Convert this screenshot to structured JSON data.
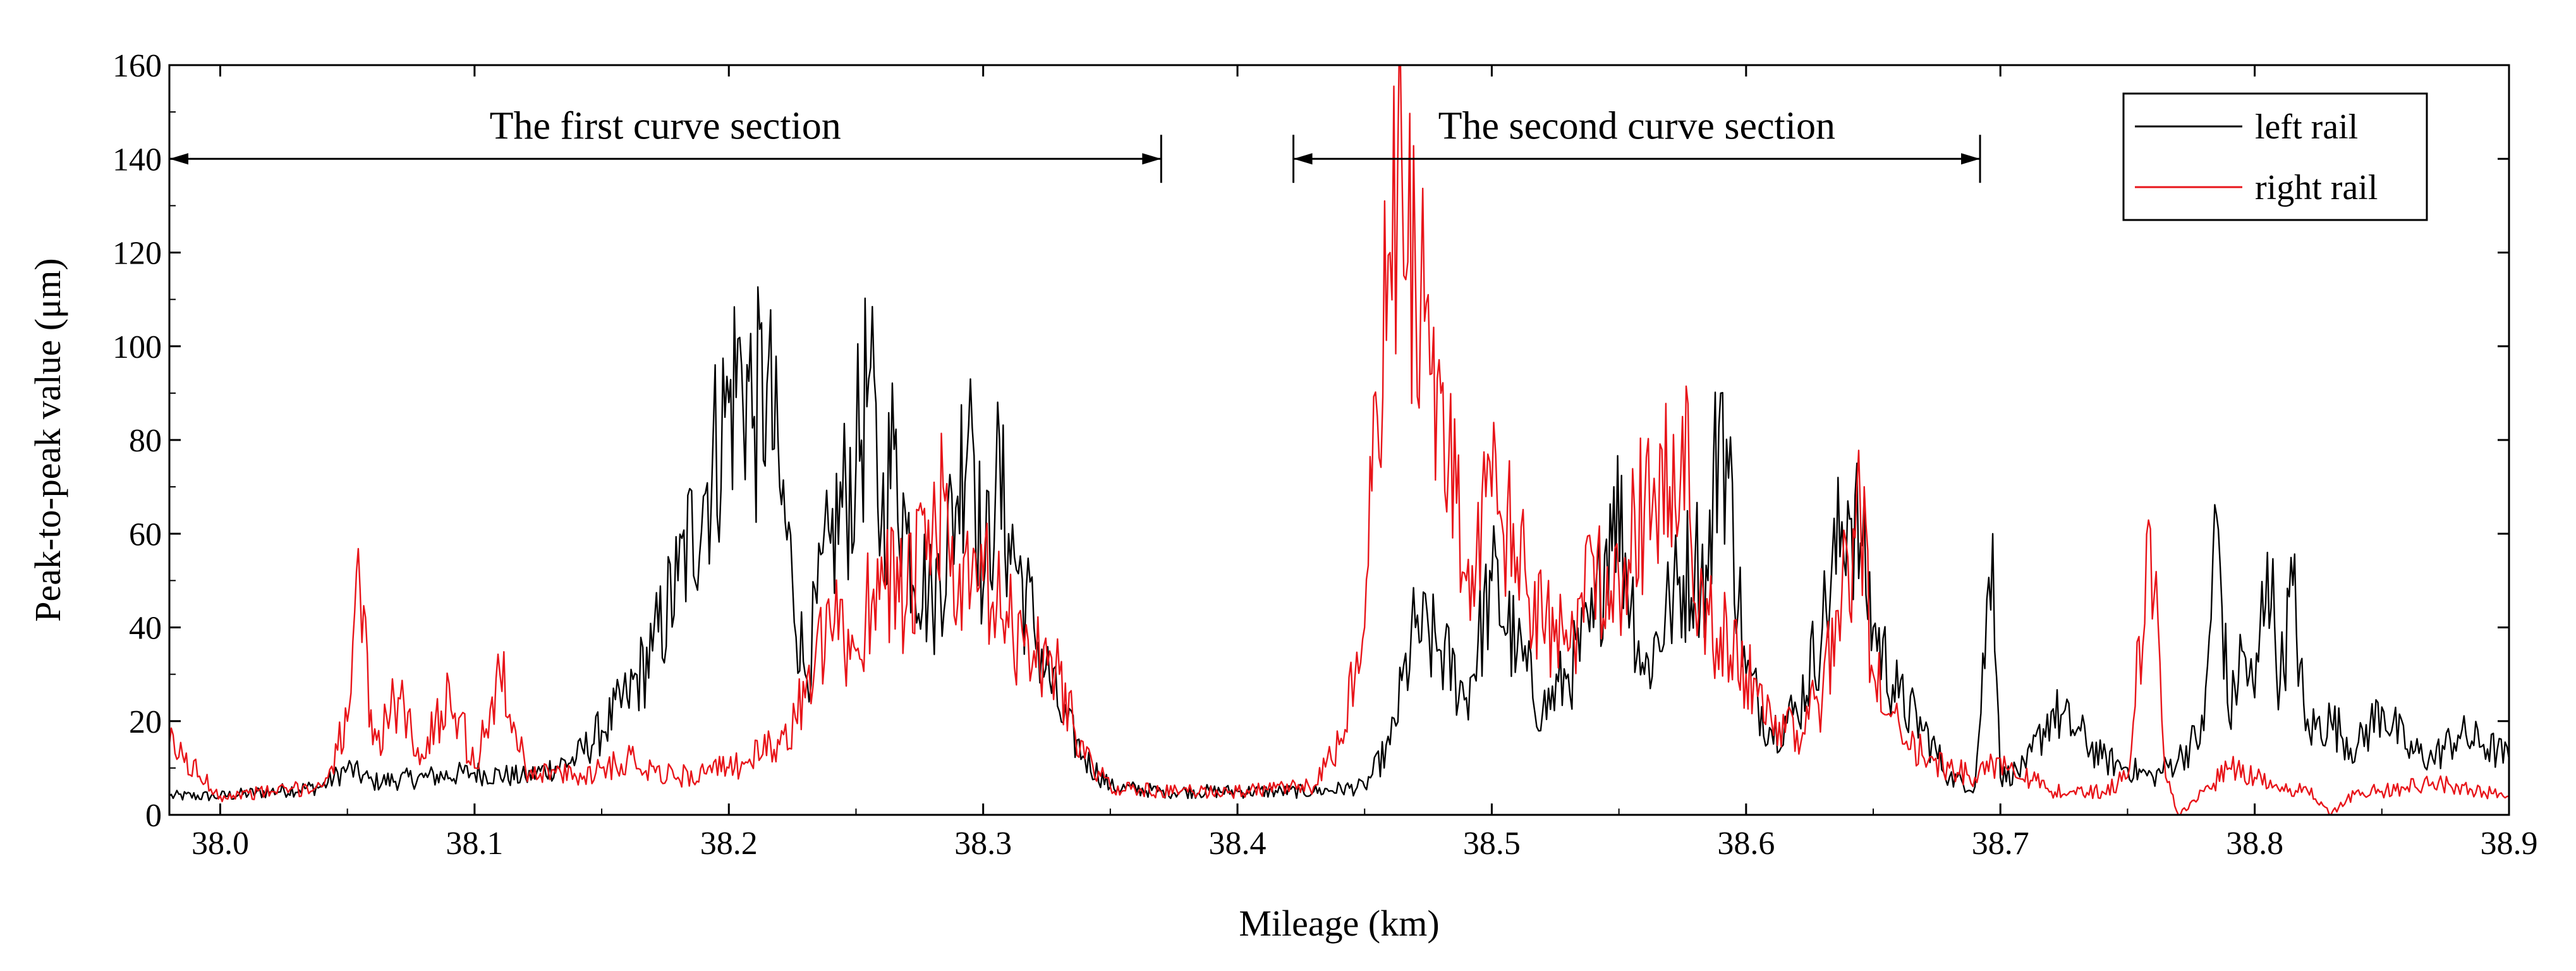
{
  "chart_data": {
    "type": "line",
    "title": "",
    "xlabel": "Mileage (km)",
    "ylabel": "Peak-to-peak value (μm)",
    "xlim": [
      37.98,
      38.9
    ],
    "ylim": [
      0,
      160
    ],
    "xticks": [
      38.0,
      38.1,
      38.2,
      38.3,
      38.4,
      38.5,
      38.6,
      38.7,
      38.8,
      38.9
    ],
    "xtick_labels": [
      "38.0",
      "38.1",
      "38.2",
      "38.3",
      "38.4",
      "38.5",
      "38.6",
      "38.7",
      "38.8",
      "38.9"
    ],
    "yticks": [
      0,
      20,
      40,
      60,
      80,
      100,
      120,
      140,
      160
    ],
    "ytick_labels": [
      "0",
      "20",
      "40",
      "60",
      "80",
      "100",
      "120",
      "140",
      "160"
    ],
    "grid": false,
    "legend_position": "top-right",
    "annotations": [
      {
        "text": "The first curve section",
        "x_start": 37.98,
        "x_end": 38.37,
        "y": 140
      },
      {
        "text": "The second curve section",
        "x_start": 38.422,
        "x_end": 38.692,
        "y": 140
      }
    ],
    "series": [
      {
        "name": "left rail",
        "color": "#000000",
        "x": [
          37.98,
          38.0,
          38.02,
          38.04,
          38.05,
          38.06,
          38.08,
          38.1,
          38.12,
          38.14,
          38.15,
          38.16,
          38.17,
          38.18,
          38.19,
          38.2,
          38.205,
          38.21,
          38.215,
          38.22,
          38.225,
          38.23,
          38.24,
          38.25,
          38.255,
          38.26,
          38.265,
          38.27,
          38.28,
          38.29,
          38.295,
          38.3,
          38.305,
          38.31,
          38.32,
          38.33,
          38.34,
          38.35,
          38.37,
          38.4,
          38.43,
          38.45,
          38.46,
          38.47,
          38.48,
          38.49,
          38.5,
          38.51,
          38.52,
          38.53,
          38.54,
          38.548,
          38.56,
          38.57,
          38.58,
          38.585,
          38.59,
          38.6,
          38.61,
          38.62,
          38.63,
          38.64,
          38.645,
          38.65,
          38.66,
          38.67,
          38.68,
          38.69,
          38.697,
          38.7,
          38.71,
          38.72,
          38.73,
          38.74,
          38.75,
          38.76,
          38.77,
          38.78,
          38.785,
          38.79,
          38.795,
          38.8,
          38.805,
          38.81,
          38.815,
          38.82,
          38.83,
          38.84,
          38.85,
          38.86,
          38.87,
          38.88,
          38.89,
          38.9
        ],
        "values": [
          4,
          4,
          5,
          6,
          10,
          7,
          8,
          9,
          8,
          12,
          18,
          25,
          35,
          50,
          68,
          88,
          96,
          85,
          92,
          70,
          50,
          30,
          58,
          75,
          93,
          62,
          78,
          60,
          45,
          68,
          93,
          48,
          72,
          60,
          40,
          22,
          12,
          6,
          5,
          5,
          5,
          6,
          15,
          40,
          35,
          25,
          50,
          35,
          22,
          30,
          40,
          70,
          30,
          45,
          55,
          50,
          90,
          30,
          18,
          22,
          40,
          67,
          58,
          40,
          25,
          18,
          8,
          6,
          60,
          8,
          10,
          22,
          18,
          12,
          10,
          8,
          12,
          18,
          64,
          20,
          35,
          25,
          56,
          28,
          49,
          18,
          20,
          14,
          23,
          14,
          12,
          17,
          15,
          12
        ]
      },
      {
        "name": "right rail",
        "color": "#e8151a",
        "x": [
          37.98,
          38.0,
          38.02,
          38.04,
          38.05,
          38.055,
          38.06,
          38.07,
          38.08,
          38.09,
          38.1,
          38.11,
          38.12,
          38.14,
          38.15,
          38.16,
          38.18,
          38.2,
          38.22,
          38.23,
          38.24,
          38.25,
          38.26,
          38.27,
          38.28,
          38.285,
          38.29,
          38.3,
          38.31,
          38.32,
          38.33,
          38.34,
          38.35,
          38.37,
          38.4,
          38.43,
          38.44,
          38.45,
          38.455,
          38.46,
          38.463,
          38.467,
          38.47,
          38.475,
          38.48,
          38.49,
          38.5,
          38.51,
          38.52,
          38.53,
          38.54,
          38.55,
          38.56,
          38.57,
          38.575,
          38.58,
          38.59,
          38.6,
          38.61,
          38.62,
          38.63,
          38.64,
          38.645,
          38.65,
          38.66,
          38.67,
          38.68,
          38.69,
          38.7,
          38.72,
          38.74,
          38.75,
          38.759,
          38.765,
          38.77,
          38.78,
          38.79,
          38.8,
          38.81,
          38.82,
          38.83,
          38.84,
          38.85,
          38.86,
          38.87,
          38.88,
          38.89,
          38.9
        ],
        "values": [
          15,
          4,
          5,
          6,
          20,
          48,
          15,
          25,
          12,
          28,
          10,
          30,
          10,
          8,
          10,
          12,
          8,
          10,
          15,
          25,
          40,
          35,
          55,
          45,
          60,
          67,
          45,
          50,
          40,
          35,
          30,
          12,
          6,
          5,
          5,
          6,
          15,
          40,
          85,
          120,
          139,
          118,
          115,
          111,
          90,
          50,
          68,
          55,
          40,
          35,
          55,
          50,
          65,
          70,
          85,
          45,
          40,
          30,
          20,
          18,
          25,
          55,
          64,
          30,
          20,
          12,
          10,
          8,
          12,
          5,
          5,
          8,
          61,
          8,
          0,
          5,
          10,
          8,
          5,
          6,
          0,
          5,
          5,
          6,
          7,
          6,
          5,
          4
        ]
      }
    ]
  }
}
